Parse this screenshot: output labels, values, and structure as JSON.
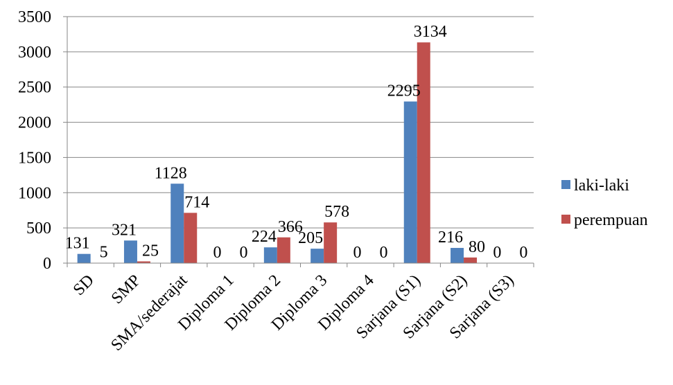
{
  "chart_data": {
    "type": "bar",
    "categories": [
      "SD",
      "SMP",
      "SMA/sederajat",
      "Diploma 1",
      "Diploma 2",
      "Diploma 3",
      "Diploma 4",
      "Sarjana (S1)",
      "Sarjana (S2)",
      "Sarjana (S3)"
    ],
    "series": [
      {
        "name": "laki-laki",
        "values": [
          131,
          321,
          1128,
          0,
          224,
          205,
          0,
          2295,
          216,
          0
        ],
        "color": "#4F81BD"
      },
      {
        "name": "perempuan",
        "values": [
          5,
          25,
          714,
          0,
          366,
          578,
          0,
          3134,
          80,
          0
        ],
        "color": "#C0504D"
      }
    ],
    "title": "",
    "xlabel": "",
    "ylabel": "",
    "ylim": [
      0,
      3500
    ],
    "yticks": [
      0,
      500,
      1000,
      1500,
      2000,
      2500,
      3000,
      3500
    ],
    "grid": true,
    "legend_position": "right"
  }
}
